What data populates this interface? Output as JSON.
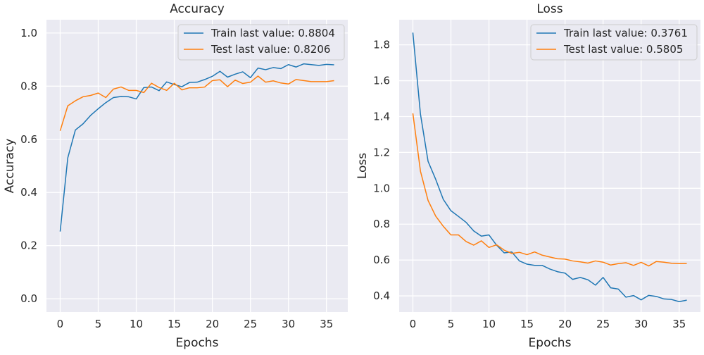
{
  "chart_data": [
    {
      "type": "line",
      "title": "Accuracy",
      "xlabel": "Epochs",
      "ylabel": "Accuracy",
      "xlim": [
        -1.8,
        37.8
      ],
      "ylim": [
        -0.05,
        1.05
      ],
      "xticks": [
        0,
        5,
        10,
        15,
        20,
        25,
        30,
        35
      ],
      "yticks": [
        0.0,
        0.2,
        0.4,
        0.6,
        0.8,
        1.0
      ],
      "ytick_format": 1,
      "grid": true,
      "legend_position": "top-right",
      "x": [
        0,
        1,
        2,
        3,
        4,
        5,
        6,
        7,
        8,
        9,
        10,
        11,
        12,
        13,
        14,
        15,
        16,
        17,
        18,
        19,
        20,
        21,
        22,
        23,
        24,
        25,
        26,
        27,
        28,
        29,
        30,
        31,
        32,
        33,
        34,
        35,
        36
      ],
      "series": [
        {
          "name": "Train last value: 0.8804",
          "color": "#1f77b4",
          "values": [
            0.253,
            0.53,
            0.635,
            0.658,
            0.69,
            0.715,
            0.738,
            0.757,
            0.761,
            0.76,
            0.752,
            0.795,
            0.797,
            0.783,
            0.816,
            0.806,
            0.798,
            0.814,
            0.815,
            0.825,
            0.837,
            0.856,
            0.834,
            0.845,
            0.854,
            0.832,
            0.868,
            0.862,
            0.87,
            0.866,
            0.881,
            0.872,
            0.884,
            0.881,
            0.878,
            0.882,
            0.8804
          ]
        },
        {
          "name": "Test last value: 0.8206",
          "color": "#ff7f0e",
          "values": [
            0.632,
            0.726,
            0.745,
            0.76,
            0.765,
            0.774,
            0.757,
            0.789,
            0.797,
            0.784,
            0.784,
            0.776,
            0.811,
            0.795,
            0.784,
            0.811,
            0.786,
            0.794,
            0.794,
            0.797,
            0.821,
            0.824,
            0.798,
            0.823,
            0.81,
            0.815,
            0.838,
            0.815,
            0.82,
            0.812,
            0.808,
            0.825,
            0.821,
            0.817,
            0.817,
            0.817,
            0.8206
          ]
        }
      ]
    },
    {
      "type": "line",
      "title": "Loss",
      "xlabel": "Epochs",
      "ylabel": "Loss",
      "xlim": [
        -1.8,
        37.8
      ],
      "ylim": [
        0.31,
        1.94
      ],
      "xticks": [
        0,
        5,
        10,
        15,
        20,
        25,
        30,
        35
      ],
      "yticks": [
        0.4,
        0.6,
        0.8,
        1.0,
        1.2,
        1.4,
        1.6,
        1.8
      ],
      "ytick_format": 1,
      "grid": true,
      "legend_position": "top-right",
      "x": [
        0,
        1,
        2,
        3,
        4,
        5,
        6,
        7,
        8,
        9,
        10,
        11,
        12,
        13,
        14,
        15,
        16,
        17,
        18,
        19,
        20,
        21,
        22,
        23,
        24,
        25,
        26,
        27,
        28,
        29,
        30,
        31,
        32,
        33,
        34,
        35,
        36
      ],
      "series": [
        {
          "name": "Train last value: 0.3761",
          "color": "#1f77b4",
          "values": [
            1.868,
            1.413,
            1.15,
            1.05,
            0.938,
            0.875,
            0.843,
            0.81,
            0.762,
            0.733,
            0.74,
            0.683,
            0.64,
            0.645,
            0.595,
            0.577,
            0.57,
            0.57,
            0.55,
            0.535,
            0.527,
            0.492,
            0.503,
            0.49,
            0.46,
            0.503,
            0.445,
            0.438,
            0.393,
            0.402,
            0.378,
            0.403,
            0.397,
            0.383,
            0.38,
            0.368,
            0.3761
          ]
        },
        {
          "name": "Test last value: 0.5805",
          "color": "#ff7f0e",
          "values": [
            1.418,
            1.095,
            0.932,
            0.845,
            0.788,
            0.74,
            0.74,
            0.703,
            0.683,
            0.707,
            0.67,
            0.685,
            0.655,
            0.637,
            0.643,
            0.63,
            0.645,
            0.627,
            0.617,
            0.607,
            0.605,
            0.595,
            0.59,
            0.583,
            0.595,
            0.588,
            0.572,
            0.58,
            0.585,
            0.57,
            0.587,
            0.567,
            0.592,
            0.588,
            0.582,
            0.58,
            0.5805
          ]
        }
      ]
    }
  ]
}
